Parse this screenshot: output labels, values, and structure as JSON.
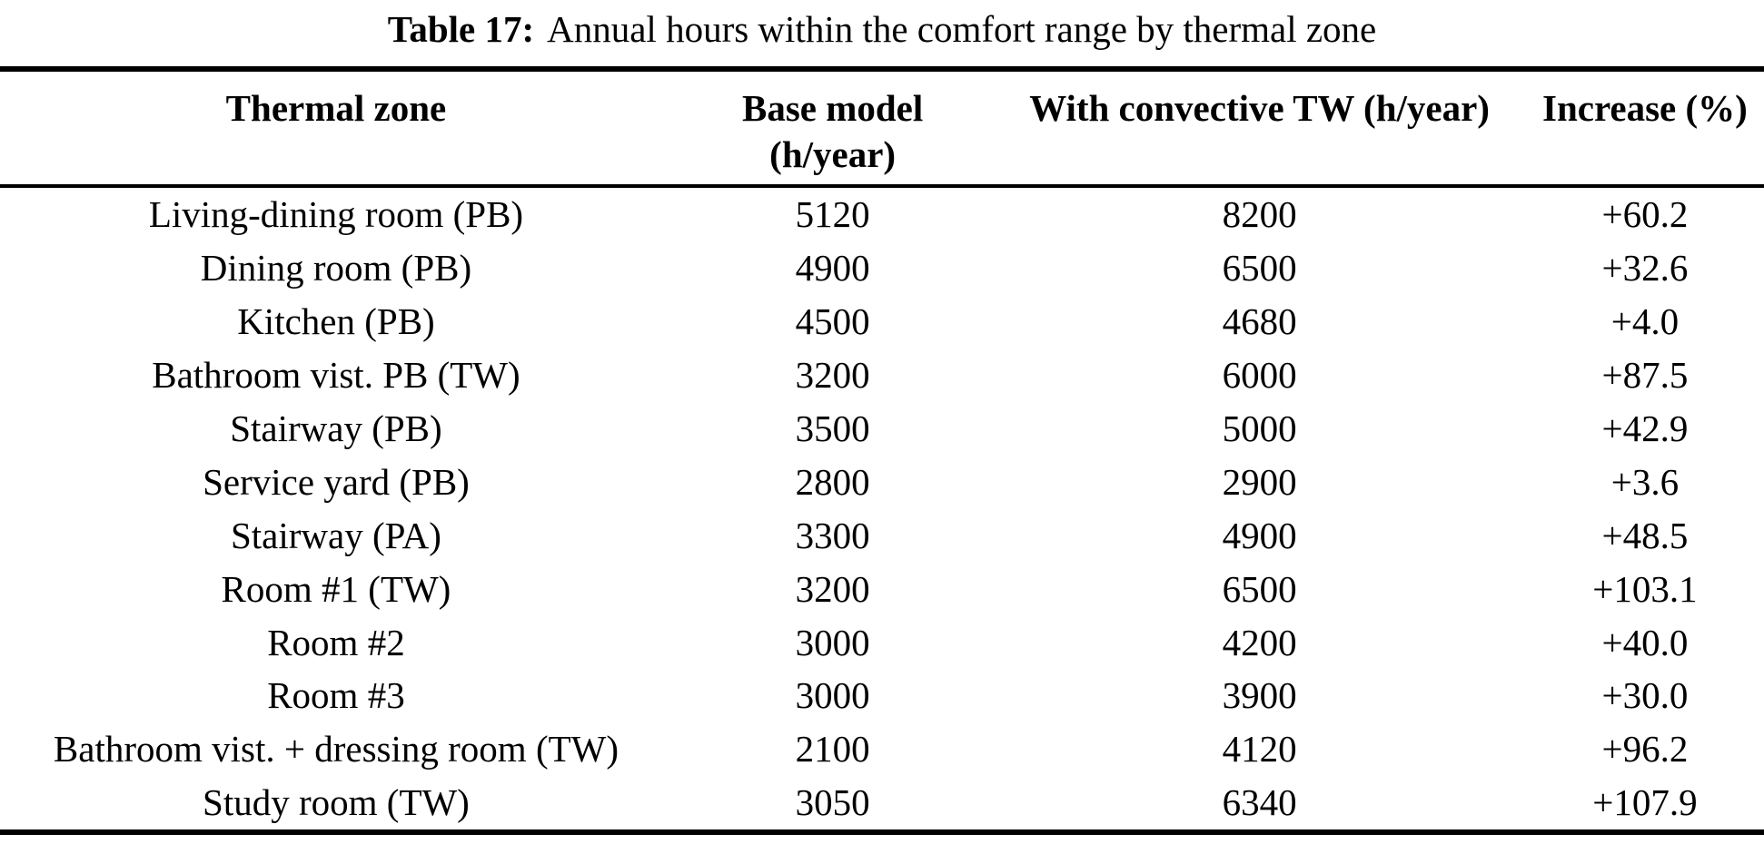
{
  "caption": {
    "label": "Table 17:",
    "text": "Annual hours within the comfort range by thermal zone"
  },
  "table": {
    "header": [
      {
        "line1": "Thermal zone",
        "line2": ""
      },
      {
        "line1": "Base model",
        "line2": "(h/year)"
      },
      {
        "line1": "With convective TW (h/year)",
        "line2": ""
      },
      {
        "line1": "Increase (%)",
        "line2": ""
      }
    ],
    "rows": [
      {
        "zone": "Living-dining room (PB)",
        "base": "5120",
        "tw": "8200",
        "increase": "+60.2"
      },
      {
        "zone": "Dining room (PB)",
        "base": "4900",
        "tw": "6500",
        "increase": "+32.6"
      },
      {
        "zone": "Kitchen (PB)",
        "base": "4500",
        "tw": "4680",
        "increase": "+4.0"
      },
      {
        "zone": "Bathroom vist. PB (TW)",
        "base": "3200",
        "tw": "6000",
        "increase": "+87.5"
      },
      {
        "zone": "Stairway (PB)",
        "base": "3500",
        "tw": "5000",
        "increase": "+42.9"
      },
      {
        "zone": "Service yard (PB)",
        "base": "2800",
        "tw": "2900",
        "increase": "+3.6"
      },
      {
        "zone": "Stairway (PA)",
        "base": "3300",
        "tw": "4900",
        "increase": "+48.5"
      },
      {
        "zone": "Room #1 (TW)",
        "base": "3200",
        "tw": "6500",
        "increase": "+103.1"
      },
      {
        "zone": "Room #2",
        "base": "3000",
        "tw": "4200",
        "increase": "+40.0"
      },
      {
        "zone": "Room #3",
        "base": "3000",
        "tw": "3900",
        "increase": "+30.0"
      },
      {
        "zone": "Bathroom vist. + dressing room (TW)",
        "base": "2100",
        "tw": "4120",
        "increase": "+96.2"
      },
      {
        "zone": "Study room (TW)",
        "base": "3050",
        "tw": "6340",
        "increase": "+107.9"
      }
    ]
  },
  "chart_data": {
    "type": "table",
    "title": "Table 17: Annual hours within the comfort range by thermal zone",
    "columns": [
      "Thermal zone",
      "Base model (h/year)",
      "With convective TW (h/year)",
      "Increase (%)"
    ],
    "rows": [
      [
        "Living-dining room (PB)",
        5120,
        8200,
        "+60.2"
      ],
      [
        "Dining room (PB)",
        4900,
        6500,
        "+32.6"
      ],
      [
        "Kitchen (PB)",
        4500,
        4680,
        "+4.0"
      ],
      [
        "Bathroom vist. PB (TW)",
        3200,
        6000,
        "+87.5"
      ],
      [
        "Stairway (PB)",
        3500,
        5000,
        "+42.9"
      ],
      [
        "Service yard (PB)",
        2800,
        2900,
        "+3.6"
      ],
      [
        "Stairway (PA)",
        3300,
        4900,
        "+48.5"
      ],
      [
        "Room #1 (TW)",
        3200,
        6500,
        "+103.1"
      ],
      [
        "Room #2",
        3000,
        4200,
        "+40.0"
      ],
      [
        "Room #3",
        3000,
        3900,
        "+30.0"
      ],
      [
        "Bathroom vist. + dressing room (TW)",
        2100,
        4120,
        "+96.2"
      ],
      [
        "Study room (TW)",
        3050,
        6340,
        "+107.9"
      ]
    ]
  }
}
